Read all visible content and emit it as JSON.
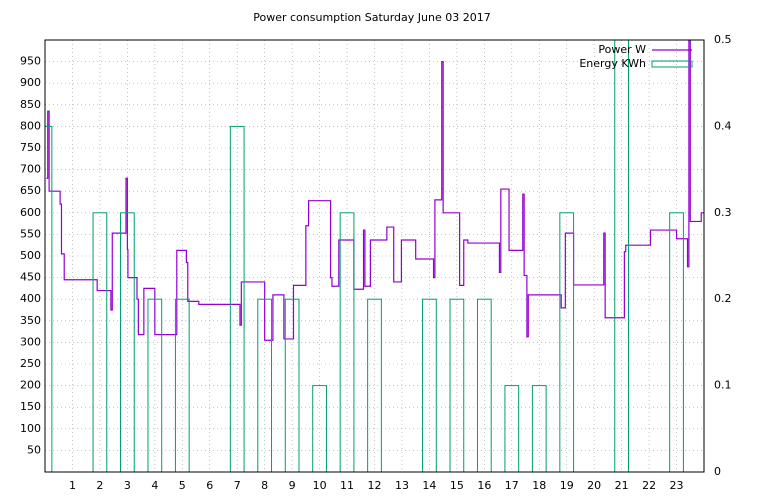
{
  "chart_data": {
    "type": "line",
    "title": "Power consumption Saturday June 03 2017",
    "line_style": "steps",
    "grid": true,
    "legend": "top-right",
    "xlim": [
      0,
      24
    ],
    "xticks": [
      1,
      2,
      3,
      4,
      5,
      6,
      7,
      8,
      9,
      10,
      11,
      12,
      13,
      14,
      15,
      16,
      17,
      18,
      19,
      20,
      21,
      22,
      23
    ],
    "ylim": [
      0,
      1000
    ],
    "yticks": [
      50,
      100,
      150,
      200,
      250,
      300,
      350,
      400,
      450,
      500,
      550,
      600,
      650,
      700,
      750,
      800,
      850,
      900,
      950
    ],
    "y2lim": [
      0,
      0.5
    ],
    "y2ticks": [
      0,
      0.1,
      0.2,
      0.3,
      0.4,
      0.5
    ],
    "series": [
      {
        "name": "Power W",
        "color": "#9400d3",
        "type": "line",
        "x": [
          0.05,
          0.1,
          0.15,
          0.55,
          0.6,
          0.7,
          1.9,
          2.4,
          2.45,
          2.95,
          3.0,
          3.02,
          3.35,
          3.4,
          3.6,
          4.0,
          4.8,
          5.15,
          5.2,
          5.6,
          7.1,
          7.15,
          8.0,
          8.3,
          8.7,
          9.05,
          9.5,
          9.6,
          10.4,
          10.45,
          10.7,
          11.25,
          11.6,
          11.65,
          11.85,
          12.45,
          12.7,
          12.98,
          13.5,
          14.15,
          14.2,
          14.45,
          14.5,
          15.1,
          15.25,
          15.4,
          16.55,
          16.6,
          16.9,
          17.4,
          17.45,
          17.55,
          17.6,
          18.8,
          18.95,
          19.25,
          20.35,
          20.4,
          21.1,
          21.15,
          22.05,
          23.0,
          23.4,
          23.45,
          23.5,
          23.9,
          24
        ],
        "values": [
          680,
          835,
          650,
          620,
          505,
          445,
          420,
          375,
          553,
          680,
          515,
          450,
          400,
          318,
          425,
          318,
          513,
          485,
          395,
          388,
          340,
          440,
          305,
          410,
          308,
          432,
          570,
          628,
          450,
          430,
          537,
          423,
          560,
          430,
          537,
          567,
          440,
          537,
          493,
          450,
          630,
          950,
          600,
          432,
          537,
          530,
          462,
          655,
          513,
          643,
          455,
          313,
          410,
          380,
          553,
          433,
          553,
          357,
          510,
          525,
          560,
          540,
          475,
          1000,
          580,
          600,
          600
        ]
      },
      {
        "name": "Energy KWh",
        "color": "#009e73",
        "type": "boxes",
        "axis": "y2",
        "x": [
          0,
          1,
          2,
          3,
          4,
          5,
          6,
          7,
          8,
          9,
          10,
          11,
          12,
          13,
          14,
          15,
          16,
          17,
          18,
          19,
          20,
          21,
          22,
          23
        ],
        "values": [
          0.4,
          0,
          0.3,
          0.3,
          0.2,
          0.2,
          0,
          0.4,
          0.2,
          0.2,
          0.1,
          0.3,
          0.2,
          0,
          0.2,
          0.2,
          0.2,
          0.1,
          0.1,
          0.3,
          0,
          0.5,
          0,
          0.3
        ]
      }
    ]
  }
}
